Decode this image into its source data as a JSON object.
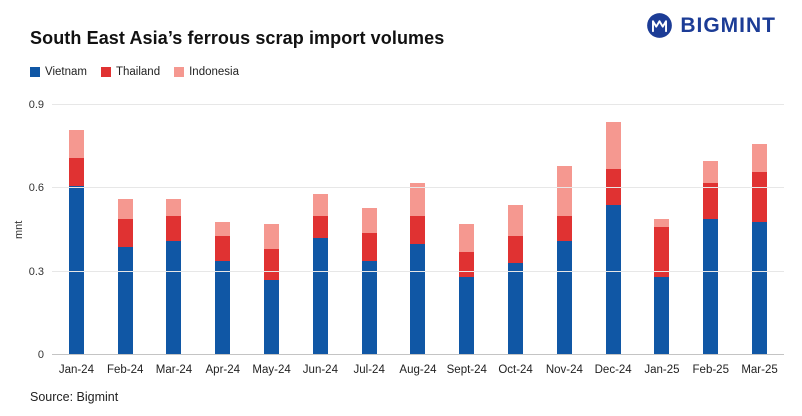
{
  "header": {
    "title": "South East Asia’s ferrous scrap import volumes",
    "logo_text": "BIGMINT",
    "logo_color": "#1c3c96"
  },
  "legend": [
    {
      "label": "Vietnam",
      "color": "#1057a5"
    },
    {
      "label": "Thailand",
      "color": "#e03232"
    },
    {
      "label": "Indonesia",
      "color": "#f59890"
    }
  ],
  "chart_data": {
    "type": "bar",
    "stacked": true,
    "title": "South East Asia’s ferrous scrap import volumes",
    "xlabel": "",
    "ylabel": "mnt",
    "ylim": [
      0,
      0.9
    ],
    "yticks": [
      0,
      0.3,
      0.6,
      0.9
    ],
    "grid": true,
    "legend_position": "top-left",
    "categories": [
      "Jan-24",
      "Feb-24",
      "Mar-24",
      "Apr-24",
      "May-24",
      "Jun-24",
      "Jul-24",
      "Aug-24",
      "Sept-24",
      "Oct-24",
      "Nov-24",
      "Dec-24",
      "Jan-25",
      "Feb-25",
      "Mar-25"
    ],
    "series": [
      {
        "name": "Vietnam",
        "color": "#1057a5",
        "values": [
          0.61,
          0.39,
          0.41,
          0.34,
          0.27,
          0.42,
          0.34,
          0.4,
          0.28,
          0.33,
          0.41,
          0.54,
          0.28,
          0.49,
          0.48
        ]
      },
      {
        "name": "Thailand",
        "color": "#e03232",
        "values": [
          0.1,
          0.1,
          0.09,
          0.09,
          0.11,
          0.08,
          0.1,
          0.1,
          0.09,
          0.1,
          0.09,
          0.13,
          0.18,
          0.13,
          0.18
        ]
      },
      {
        "name": "Indonesia",
        "color": "#f59890",
        "values": [
          0.1,
          0.07,
          0.06,
          0.05,
          0.09,
          0.08,
          0.09,
          0.12,
          0.1,
          0.11,
          0.18,
          0.17,
          0.03,
          0.08,
          0.1
        ]
      }
    ]
  },
  "footer": {
    "source": "Source: Bigmint"
  }
}
